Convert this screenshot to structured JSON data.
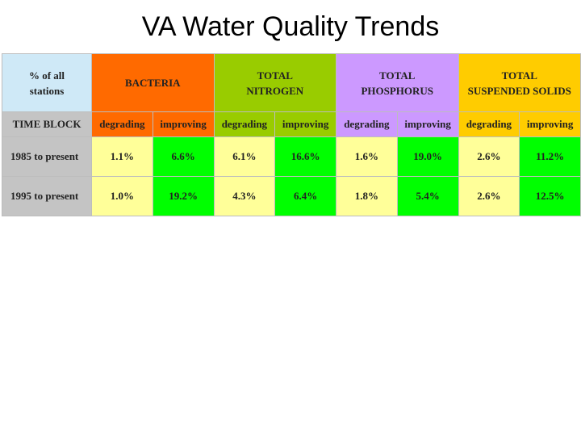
{
  "title": "VA Water Quality Trends",
  "chart_data": {
    "type": "table",
    "corner_label": "% of all\nstations",
    "row_header_label": "TIME BLOCK",
    "groups": [
      {
        "name": "BACTERIA",
        "color": "#ff6a00"
      },
      {
        "name": "TOTAL\nNITROGEN",
        "color": "#99cc00"
      },
      {
        "name": "TOTAL\nPHOSPHORUS",
        "color": "#cc99ff"
      },
      {
        "name": "TOTAL\nSUSPENDED SOLIDS",
        "color": "#ffcc00"
      }
    ],
    "subcolumns": [
      "degrading",
      "improving",
      "degrading",
      "improving",
      "degrading",
      "improving",
      "degrading",
      "improving"
    ],
    "rows": [
      {
        "label": "1985 to present",
        "values": [
          "1.1%",
          "6.6%",
          "6.1%",
          "16.6%",
          "1.6%",
          "19.0%",
          "2.6%",
          "11.2%"
        ]
      },
      {
        "label": "1995 to present",
        "values": [
          "1.0%",
          "19.2%",
          "4.3%",
          "6.4%",
          "1.8%",
          "5.4%",
          "2.6%",
          "12.5%"
        ]
      }
    ],
    "colors": {
      "degrading": "#ffff99",
      "improving": "#00ff00",
      "corner": "#cfe9f7",
      "label_column": "#c4c4c4"
    }
  }
}
